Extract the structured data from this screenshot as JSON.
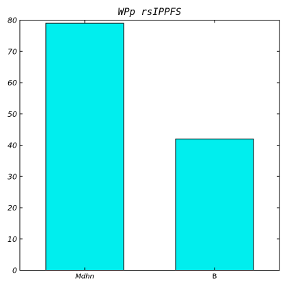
{
  "chart_data": {
    "type": "bar",
    "title": "WPp rsIPPFS",
    "categories": [
      "Mdhn",
      "B"
    ],
    "values": [
      79,
      42
    ],
    "ylim": [
      0,
      80
    ],
    "yticks": [
      0,
      10,
      20,
      30,
      40,
      50,
      60,
      70,
      80
    ],
    "xlabel": "",
    "ylabel": "",
    "grid": false,
    "bar_color": "#00eeee"
  }
}
